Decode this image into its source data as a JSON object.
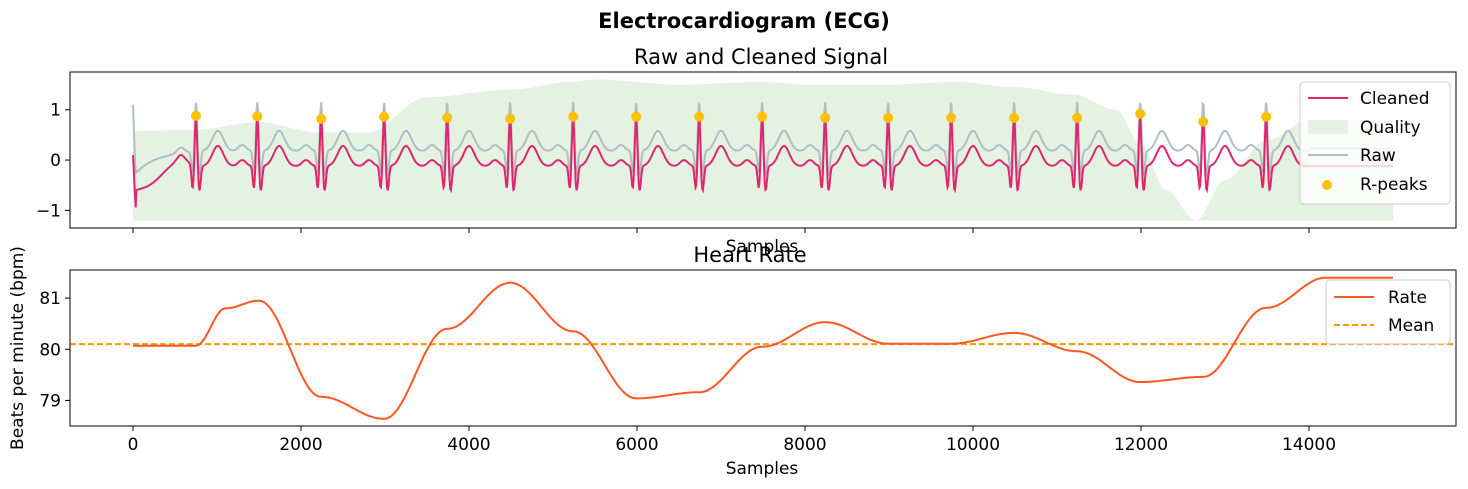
{
  "figure": {
    "title": "Electrocardiogram (ECG)"
  },
  "colors": {
    "cleaned": "#E0266F",
    "raw": "#B0BEC5",
    "quality": "#E3F2E1",
    "rpeaks": "#FFC107",
    "rate": "#FF5722",
    "mean": "#FF9800"
  },
  "chart_data": [
    {
      "type": "line",
      "title": "Raw and Cleaned Signal",
      "xlabel": "Samples",
      "ylabel": "",
      "xlim": [
        -750,
        15750
      ],
      "ylim": [
        -1.35,
        1.75
      ],
      "xticks": [
        0,
        2000,
        4000,
        6000,
        8000,
        10000,
        12000,
        14000
      ],
      "xtick_labels_visible": false,
      "yticks": [
        -1,
        0,
        1
      ],
      "ytick_labels": [
        "−1",
        "0",
        "1"
      ],
      "legend_position": "top-right",
      "legend": [
        "Cleaned",
        "Quality",
        "Raw",
        "R-peaks"
      ],
      "rpeaks": {
        "name": "R-peaks",
        "x": [
          750,
          1480,
          2240,
          2990,
          3740,
          4490,
          5240,
          5990,
          6740,
          7490,
          8240,
          8990,
          9740,
          10490,
          11240,
          11990,
          12740,
          13490
        ],
        "y": [
          0.88,
          0.87,
          0.82,
          0.86,
          0.84,
          0.82,
          0.86,
          0.86,
          0.86,
          0.86,
          0.84,
          0.84,
          0.84,
          0.84,
          0.84,
          0.92,
          0.76,
          0.86
        ]
      },
      "quality": {
        "name": "Quality",
        "baseline": -1.2,
        "x": [
          0,
          50,
          700,
          1500,
          2200,
          2800,
          3500,
          4500,
          5200,
          5500,
          6500,
          7500,
          8000,
          9000,
          9800,
          10500,
          11200,
          11700,
          12000,
          12300,
          12650,
          13000,
          13500,
          14000,
          14500,
          15000
        ],
        "top": [
          0.55,
          0.58,
          0.6,
          0.75,
          0.55,
          0.55,
          1.25,
          1.4,
          1.55,
          1.6,
          1.5,
          1.55,
          1.5,
          1.5,
          1.55,
          1.45,
          1.3,
          1.0,
          0.3,
          -0.6,
          -1.2,
          -0.4,
          0.4,
          0.8,
          0.8,
          0.8
        ]
      }
    },
    {
      "type": "line",
      "title": "Heart Rate",
      "xlabel": "Samples",
      "ylabel": "Beats per minute (bpm)",
      "xlim": [
        -750,
        15750
      ],
      "ylim": [
        78.5,
        81.55
      ],
      "xticks": [
        0,
        2000,
        4000,
        6000,
        8000,
        10000,
        12000,
        14000
      ],
      "xtick_labels": [
        "0",
        "2000",
        "4000",
        "6000",
        "8000",
        "10000",
        "12000",
        "14000"
      ],
      "yticks": [
        79,
        80,
        81
      ],
      "ytick_labels": [
        "79",
        "80",
        "81"
      ],
      "legend_position": "top-right",
      "legend": [
        "Rate",
        "Mean"
      ],
      "series": [
        {
          "name": "Rate",
          "x": [
            0,
            750,
            1100,
            1500,
            2240,
            2990,
            3740,
            4490,
            5240,
            5990,
            6740,
            7490,
            8240,
            8990,
            9740,
            10490,
            11240,
            11990,
            12740,
            13490,
            14200,
            15000
          ],
          "y": [
            80.07,
            80.07,
            80.8,
            80.95,
            79.07,
            78.64,
            80.4,
            81.3,
            80.35,
            79.04,
            79.16,
            80.05,
            80.53,
            80.11,
            80.11,
            80.32,
            79.96,
            79.36,
            79.46,
            80.81,
            81.4,
            81.4
          ]
        },
        {
          "name": "Mean",
          "style": "dashed",
          "value": 80.1
        }
      ]
    }
  ]
}
